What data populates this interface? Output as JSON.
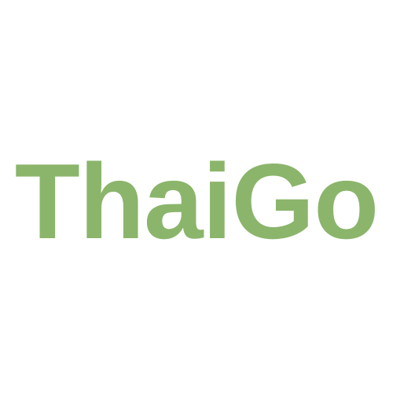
{
  "logo": {
    "text": "ThaiGo",
    "color": "#8bb56b"
  },
  "background_color": "#ffffff"
}
